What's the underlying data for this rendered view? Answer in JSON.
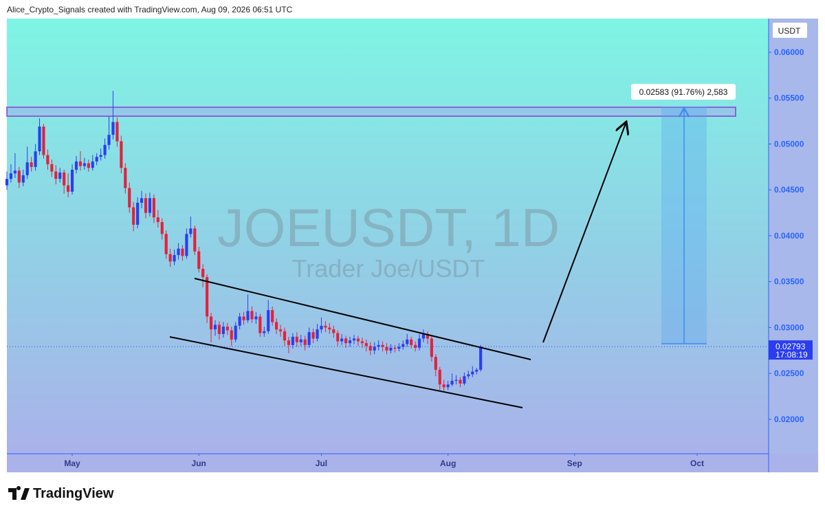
{
  "header": {
    "credit": "Alice_Crypto_Signals created with TradingView.com, Aug 09, 2026 06:51 UTC"
  },
  "chart_data": {
    "type": "candlestick",
    "symbol_watermark": "JOEUSDT, 1D",
    "name_watermark": "Trader Joe/USDT",
    "currency": "USDT",
    "up_color": "#2a3ef0",
    "down_color": "#e3213b",
    "xlim": [
      0,
      186.5
    ],
    "xticks": [
      {
        "value": 16,
        "label": "May"
      },
      {
        "value": 47,
        "label": "Jun"
      },
      {
        "value": 77,
        "label": "Jul"
      },
      {
        "value": 108,
        "label": "Aug"
      },
      {
        "value": 139,
        "label": "Sep"
      },
      {
        "value": 169,
        "label": "Oct"
      }
    ],
    "ylim": [
      0.01625,
      0.06367
    ],
    "yticks": [
      {
        "value": 0.02,
        "label": "0.02000"
      },
      {
        "value": 0.025,
        "label": "0.02500"
      },
      {
        "value": 0.03,
        "label": "0.03000"
      },
      {
        "value": 0.035,
        "label": "0.03500"
      },
      {
        "value": 0.04,
        "label": "0.04000"
      },
      {
        "value": 0.045,
        "label": "0.04500"
      },
      {
        "value": 0.05,
        "label": "0.05000"
      },
      {
        "value": 0.055,
        "label": "0.05500"
      },
      {
        "value": 0.06,
        "label": "0.06000"
      }
    ],
    "last_price": 0.02793,
    "countdown": "17:08:19",
    "measure_label": "0.02583 (91.76%) 2,583",
    "candles": [
      [
        0.0455,
        0.047,
        0.045,
        0.0462
      ],
      [
        0.0462,
        0.0478,
        0.0458,
        0.0468
      ],
      [
        0.0468,
        0.049,
        0.0463,
        0.0471
      ],
      [
        0.0471,
        0.0475,
        0.0452,
        0.0458
      ],
      [
        0.0458,
        0.0472,
        0.0454,
        0.0466
      ],
      [
        0.0466,
        0.0497,
        0.0462,
        0.048
      ],
      [
        0.048,
        0.0486,
        0.047,
        0.0475
      ],
      [
        0.0475,
        0.05,
        0.0471,
        0.0492
      ],
      [
        0.0492,
        0.0528,
        0.0488,
        0.0519
      ],
      [
        0.0519,
        0.0522,
        0.0484,
        0.0488
      ],
      [
        0.0488,
        0.0494,
        0.0472,
        0.0478
      ],
      [
        0.0478,
        0.0483,
        0.0464,
        0.047
      ],
      [
        0.047,
        0.0477,
        0.0456,
        0.0462
      ],
      [
        0.0462,
        0.0474,
        0.0458,
        0.0469
      ],
      [
        0.0469,
        0.0472,
        0.0446,
        0.0455
      ],
      [
        0.0455,
        0.0468,
        0.0442,
        0.0448
      ],
      [
        0.0448,
        0.0478,
        0.0445,
        0.0472
      ],
      [
        0.0472,
        0.0487,
        0.0468,
        0.0481
      ],
      [
        0.0481,
        0.0492,
        0.0471,
        0.0476
      ],
      [
        0.0476,
        0.0485,
        0.0472,
        0.0479
      ],
      [
        0.0479,
        0.0483,
        0.047,
        0.0474
      ],
      [
        0.0474,
        0.0488,
        0.0471,
        0.0481
      ],
      [
        0.0481,
        0.049,
        0.0477,
        0.0486
      ],
      [
        0.0486,
        0.0495,
        0.0482,
        0.0488
      ],
      [
        0.0488,
        0.0506,
        0.0484,
        0.0499
      ],
      [
        0.0499,
        0.053,
        0.0494,
        0.051
      ],
      [
        0.051,
        0.0558,
        0.0505,
        0.0524
      ],
      [
        0.0524,
        0.0529,
        0.0497,
        0.0503
      ],
      [
        0.0503,
        0.0509,
        0.0468,
        0.0474
      ],
      [
        0.0474,
        0.0479,
        0.0446,
        0.0452
      ],
      [
        0.0452,
        0.0458,
        0.0425,
        0.0431
      ],
      [
        0.0431,
        0.0437,
        0.0405,
        0.0412
      ],
      [
        0.0412,
        0.0442,
        0.0408,
        0.0436
      ],
      [
        0.0436,
        0.0449,
        0.043,
        0.0441
      ],
      [
        0.0441,
        0.0446,
        0.0419,
        0.0425
      ],
      [
        0.0425,
        0.0447,
        0.0421,
        0.0441
      ],
      [
        0.0441,
        0.0445,
        0.0414,
        0.042
      ],
      [
        0.042,
        0.0428,
        0.0409,
        0.0415
      ],
      [
        0.0415,
        0.0419,
        0.0396,
        0.0402
      ],
      [
        0.0402,
        0.0406,
        0.0375,
        0.038
      ],
      [
        0.038,
        0.0386,
        0.0366,
        0.0372
      ],
      [
        0.0372,
        0.0385,
        0.0368,
        0.0379
      ],
      [
        0.0379,
        0.0392,
        0.0374,
        0.0386
      ],
      [
        0.0386,
        0.039,
        0.0373,
        0.0378
      ],
      [
        0.0378,
        0.0408,
        0.0375,
        0.0402
      ],
      [
        0.0402,
        0.0421,
        0.0398,
        0.0408
      ],
      [
        0.0408,
        0.0411,
        0.0379,
        0.0383
      ],
      [
        0.0383,
        0.0388,
        0.036,
        0.0364
      ],
      [
        0.0364,
        0.0369,
        0.0344,
        0.0355
      ],
      [
        0.0355,
        0.0358,
        0.0305,
        0.0312
      ],
      [
        0.0312,
        0.0316,
        0.0284,
        0.0298
      ],
      [
        0.0298,
        0.0308,
        0.0291,
        0.0303
      ],
      [
        0.0303,
        0.0307,
        0.0287,
        0.0293
      ],
      [
        0.0293,
        0.0306,
        0.0289,
        0.0301
      ],
      [
        0.0301,
        0.0305,
        0.0292,
        0.0297
      ],
      [
        0.0297,
        0.0301,
        0.028,
        0.0287
      ],
      [
        0.0287,
        0.0306,
        0.0284,
        0.0302
      ],
      [
        0.0302,
        0.0316,
        0.0298,
        0.0312
      ],
      [
        0.0312,
        0.0317,
        0.0303,
        0.0308
      ],
      [
        0.0308,
        0.0336,
        0.0305,
        0.0318
      ],
      [
        0.0318,
        0.0323,
        0.0305,
        0.0309
      ],
      [
        0.0309,
        0.0317,
        0.0304,
        0.0312
      ],
      [
        0.0312,
        0.0315,
        0.029,
        0.0294
      ],
      [
        0.0294,
        0.0301,
        0.029,
        0.0296
      ],
      [
        0.0296,
        0.033,
        0.0293,
        0.0319
      ],
      [
        0.0319,
        0.0323,
        0.0302,
        0.0306
      ],
      [
        0.0306,
        0.031,
        0.0293,
        0.0298
      ],
      [
        0.0298,
        0.0303,
        0.029,
        0.0296
      ],
      [
        0.0296,
        0.03,
        0.028,
        0.0286
      ],
      [
        0.0286,
        0.029,
        0.0272,
        0.0281
      ],
      [
        0.0281,
        0.0294,
        0.0277,
        0.029
      ],
      [
        0.029,
        0.0295,
        0.0279,
        0.0284
      ],
      [
        0.0284,
        0.0292,
        0.028,
        0.0287
      ],
      [
        0.0287,
        0.0291,
        0.0275,
        0.0281
      ],
      [
        0.0281,
        0.03,
        0.0278,
        0.0295
      ],
      [
        0.0295,
        0.0299,
        0.0283,
        0.0288
      ],
      [
        0.0288,
        0.0304,
        0.0285,
        0.0298
      ],
      [
        0.0298,
        0.0311,
        0.0294,
        0.0302
      ],
      [
        0.0302,
        0.0307,
        0.0295,
        0.03
      ],
      [
        0.03,
        0.0305,
        0.0293,
        0.0298
      ],
      [
        0.0298,
        0.0302,
        0.0289,
        0.0294
      ],
      [
        0.0294,
        0.0297,
        0.028,
        0.0285
      ],
      [
        0.0285,
        0.0293,
        0.0281,
        0.0288
      ],
      [
        0.0288,
        0.0291,
        0.0278,
        0.0283
      ],
      [
        0.0283,
        0.029,
        0.0279,
        0.0286
      ],
      [
        0.0286,
        0.0292,
        0.0282,
        0.0288
      ],
      [
        0.0288,
        0.0291,
        0.028,
        0.0285
      ],
      [
        0.0285,
        0.0289,
        0.0278,
        0.0283
      ],
      [
        0.0283,
        0.0287,
        0.0274,
        0.028
      ],
      [
        0.028,
        0.0284,
        0.027,
        0.0275
      ],
      [
        0.0275,
        0.0284,
        0.0271,
        0.0279
      ],
      [
        0.0279,
        0.0286,
        0.0275,
        0.0281
      ],
      [
        0.0281,
        0.0285,
        0.0274,
        0.0279
      ],
      [
        0.0279,
        0.0283,
        0.0271,
        0.0275
      ],
      [
        0.0275,
        0.0282,
        0.0272,
        0.0278
      ],
      [
        0.0278,
        0.0281,
        0.0273,
        0.0277
      ],
      [
        0.0277,
        0.0283,
        0.0274,
        0.0279
      ],
      [
        0.0279,
        0.0286,
        0.0276,
        0.0282
      ],
      [
        0.0282,
        0.0293,
        0.0279,
        0.0287
      ],
      [
        0.0287,
        0.029,
        0.0277,
        0.0281
      ],
      [
        0.0281,
        0.0285,
        0.0274,
        0.0278
      ],
      [
        0.0278,
        0.0293,
        0.0275,
        0.0288
      ],
      [
        0.0288,
        0.0298,
        0.0284,
        0.0293
      ],
      [
        0.0293,
        0.0296,
        0.0282,
        0.0288
      ],
      [
        0.0288,
        0.0291,
        0.0263,
        0.0268
      ],
      [
        0.0268,
        0.0271,
        0.0247,
        0.0254
      ],
      [
        0.0254,
        0.0257,
        0.0232,
        0.0238
      ],
      [
        0.0238,
        0.0243,
        0.0231,
        0.0235
      ],
      [
        0.0235,
        0.0242,
        0.0232,
        0.0238
      ],
      [
        0.0238,
        0.025,
        0.0236,
        0.0242
      ],
      [
        0.0242,
        0.0248,
        0.0238,
        0.0243
      ],
      [
        0.0243,
        0.0246,
        0.0235,
        0.0239
      ],
      [
        0.0239,
        0.0251,
        0.0237,
        0.0247
      ],
      [
        0.0247,
        0.0253,
        0.0244,
        0.0249
      ],
      [
        0.0249,
        0.0258,
        0.0246,
        0.0252
      ],
      [
        0.0252,
        0.0256,
        0.0249,
        0.0254
      ],
      [
        0.0254,
        0.0281,
        0.0252,
        0.02793
      ]
    ]
  },
  "footer": {
    "brand": "TradingView"
  }
}
